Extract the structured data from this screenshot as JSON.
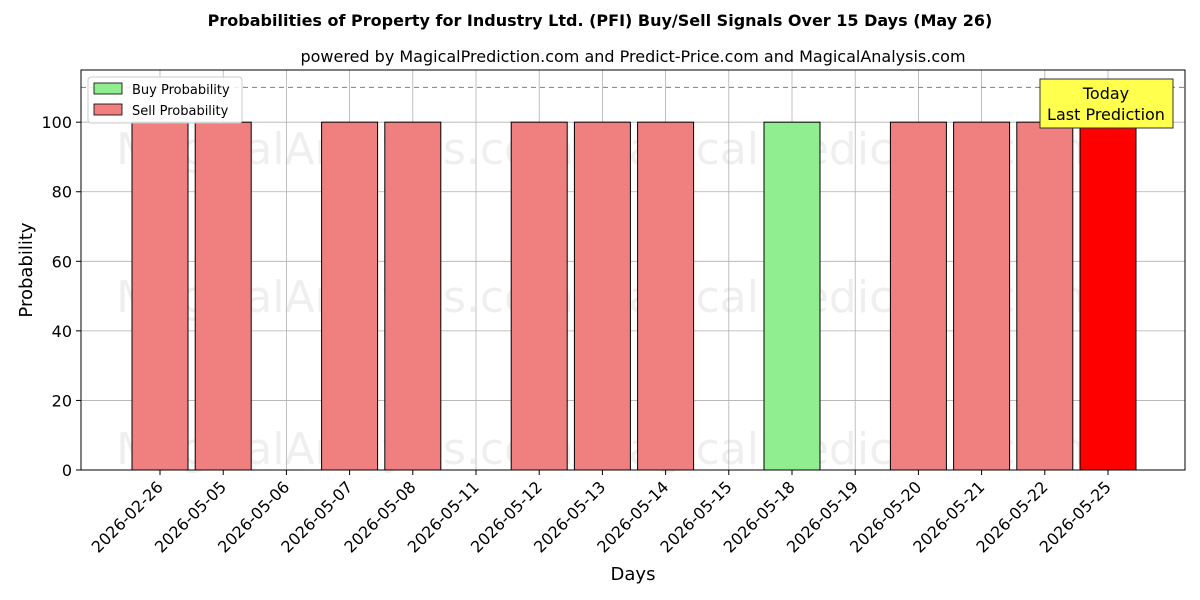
{
  "chart_data": {
    "type": "bar",
    "title": "Probabilities of Property for Industry Ltd. (PFI) Buy/Sell Signals Over 15 Days (May 26)",
    "subtitle": "powered by MagicalPrediction.com and Predict-Price.com and MagicalAnalysis.com",
    "xlabel": "Days",
    "ylabel": "Probability",
    "ylim": [
      0,
      115
    ],
    "yticks": [
      0,
      20,
      40,
      60,
      80,
      100
    ],
    "grid": true,
    "categories": [
      "2026-02-26",
      "2026-05-05",
      "2026-05-06",
      "2026-05-07",
      "2026-05-08",
      "2026-05-11",
      "2026-05-12",
      "2026-05-13",
      "2026-05-14",
      "2026-05-15",
      "2026-05-18",
      "2026-05-19",
      "2026-05-20",
      "2026-05-21",
      "2026-05-22",
      "2026-05-25"
    ],
    "series": [
      {
        "name": "Buy Probability",
        "color": "#90ee90",
        "values": [
          0,
          0,
          null,
          0,
          0,
          null,
          0,
          0,
          0,
          null,
          100,
          null,
          0,
          0,
          0,
          0
        ]
      },
      {
        "name": "Sell Probability",
        "color": "#f08080",
        "values": [
          100,
          100,
          null,
          100,
          100,
          null,
          100,
          100,
          100,
          null,
          0,
          null,
          100,
          100,
          100,
          100
        ]
      }
    ],
    "highlight": {
      "index": 15,
      "color": "#ff0000"
    },
    "reference_line": {
      "value": 110,
      "style": "dashed",
      "color": "#808080"
    },
    "legend": {
      "position": "top-left",
      "entries": [
        "Buy Probability",
        "Sell Probability"
      ]
    },
    "annotation": {
      "lines": [
        "Today",
        "Last Prediction"
      ],
      "background": "#ffff4d"
    },
    "watermarks": [
      "MagicalAnalysis.com",
      "MagicalPrediction.com"
    ]
  }
}
